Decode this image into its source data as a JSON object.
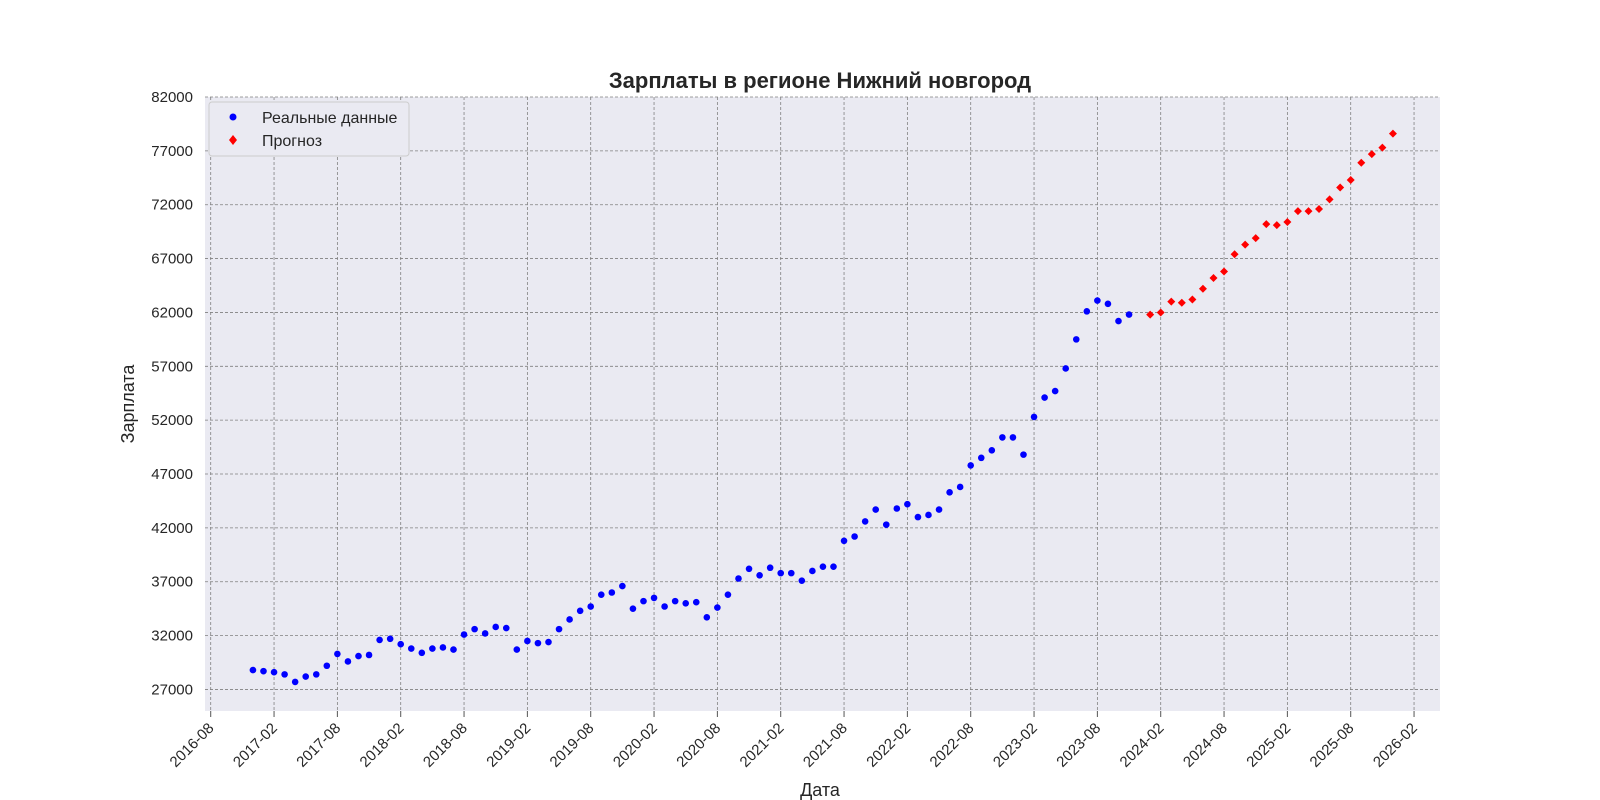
{
  "chart_data": {
    "type": "scatter",
    "title": "Зарплаты в регионе Нижний новгород",
    "xlabel": "Дата",
    "ylabel": "Зарплата",
    "ylim": [
      25000,
      82000
    ],
    "xlim": [
      "2016-07-15",
      "2026-04-15"
    ],
    "yticks": [
      27000,
      32000,
      37000,
      42000,
      47000,
      52000,
      57000,
      62000,
      67000,
      72000,
      77000,
      82000
    ],
    "xticks": [
      "2016-08",
      "2017-02",
      "2017-08",
      "2018-02",
      "2018-08",
      "2019-02",
      "2019-08",
      "2020-02",
      "2020-08",
      "2021-02",
      "2021-08",
      "2022-02",
      "2022-08",
      "2023-02",
      "2023-08",
      "2024-02",
      "2024-08",
      "2025-02",
      "2025-08",
      "2026-02"
    ],
    "grid": true,
    "legend_position": "top-left",
    "background_color": "#eaeaf2",
    "series": [
      {
        "name": "Реальные данные",
        "color": "#0000ff",
        "marker": "circle",
        "points": [
          [
            "2016-12",
            28800
          ],
          [
            "2017-01",
            28700
          ],
          [
            "2017-02",
            28600
          ],
          [
            "2017-03",
            28400
          ],
          [
            "2017-04",
            27700
          ],
          [
            "2017-05",
            28200
          ],
          [
            "2017-06",
            28400
          ],
          [
            "2017-07",
            29200
          ],
          [
            "2017-08",
            30300
          ],
          [
            "2017-09",
            29600
          ],
          [
            "2017-10",
            30100
          ],
          [
            "2017-11",
            30200
          ],
          [
            "2017-12",
            31600
          ],
          [
            "2018-01",
            31700
          ],
          [
            "2018-02",
            31200
          ],
          [
            "2018-03",
            30800
          ],
          [
            "2018-04",
            30400
          ],
          [
            "2018-05",
            30800
          ],
          [
            "2018-06",
            30900
          ],
          [
            "2018-07",
            30700
          ],
          [
            "2018-08",
            32100
          ],
          [
            "2018-09",
            32600
          ],
          [
            "2018-10",
            32200
          ],
          [
            "2018-11",
            32800
          ],
          [
            "2018-12",
            32700
          ],
          [
            "2019-01",
            30700
          ],
          [
            "2019-02",
            31500
          ],
          [
            "2019-03",
            31300
          ],
          [
            "2019-04",
            31400
          ],
          [
            "2019-05",
            32600
          ],
          [
            "2019-06",
            33500
          ],
          [
            "2019-07",
            34300
          ],
          [
            "2019-08",
            34700
          ],
          [
            "2019-09",
            35800
          ],
          [
            "2019-10",
            36000
          ],
          [
            "2019-11",
            36600
          ],
          [
            "2019-12",
            34500
          ],
          [
            "2020-01",
            35200
          ],
          [
            "2020-02",
            35500
          ],
          [
            "2020-03",
            34700
          ],
          [
            "2020-04",
            35200
          ],
          [
            "2020-05",
            35000
          ],
          [
            "2020-06",
            35100
          ],
          [
            "2020-07",
            33700
          ],
          [
            "2020-08",
            34600
          ],
          [
            "2020-09",
            35800
          ],
          [
            "2020-10",
            37300
          ],
          [
            "2020-11",
            38200
          ],
          [
            "2020-12",
            37600
          ],
          [
            "2021-01",
            38300
          ],
          [
            "2021-02",
            37800
          ],
          [
            "2021-03",
            37800
          ],
          [
            "2021-04",
            37100
          ],
          [
            "2021-05",
            38000
          ],
          [
            "2021-06",
            38400
          ],
          [
            "2021-07",
            38400
          ],
          [
            "2021-08",
            40800
          ],
          [
            "2021-09",
            41200
          ],
          [
            "2021-10",
            42600
          ],
          [
            "2021-11",
            43700
          ],
          [
            "2021-12",
            42300
          ],
          [
            "2022-01",
            43800
          ],
          [
            "2022-02",
            44200
          ],
          [
            "2022-03",
            43000
          ],
          [
            "2022-04",
            43200
          ],
          [
            "2022-05",
            43700
          ],
          [
            "2022-06",
            45300
          ],
          [
            "2022-07",
            45800
          ],
          [
            "2022-08",
            47800
          ],
          [
            "2022-09",
            48500
          ],
          [
            "2022-10",
            49200
          ],
          [
            "2022-11",
            50400
          ],
          [
            "2022-12",
            50400
          ],
          [
            "2023-01",
            48800
          ],
          [
            "2023-02",
            52300
          ],
          [
            "2023-03",
            54100
          ],
          [
            "2023-04",
            54700
          ],
          [
            "2023-05",
            56800
          ],
          [
            "2023-06",
            59500
          ],
          [
            "2023-07",
            62100
          ],
          [
            "2023-08",
            63100
          ],
          [
            "2023-09",
            62800
          ],
          [
            "2023-10",
            61200
          ],
          [
            "2023-11",
            61800
          ]
        ]
      },
      {
        "name": "Прогноз",
        "color": "#ff0000",
        "marker": "diamond",
        "points": [
          [
            "2024-01",
            61800
          ],
          [
            "2024-02",
            62000
          ],
          [
            "2024-03",
            63000
          ],
          [
            "2024-04",
            62900
          ],
          [
            "2024-05",
            63200
          ],
          [
            "2024-06",
            64200
          ],
          [
            "2024-07",
            65200
          ],
          [
            "2024-08",
            65800
          ],
          [
            "2024-09",
            67400
          ],
          [
            "2024-10",
            68300
          ],
          [
            "2024-11",
            68900
          ],
          [
            "2024-12",
            70200
          ],
          [
            "2025-01",
            70100
          ],
          [
            "2025-02",
            70400
          ],
          [
            "2025-03",
            71400
          ],
          [
            "2025-04",
            71400
          ],
          [
            "2025-05",
            71600
          ],
          [
            "2025-06",
            72500
          ],
          [
            "2025-07",
            73600
          ],
          [
            "2025-08",
            74300
          ],
          [
            "2025-09",
            75900
          ],
          [
            "2025-10",
            76700
          ],
          [
            "2025-11",
            77300
          ],
          [
            "2025-12",
            78600
          ]
        ]
      }
    ]
  }
}
